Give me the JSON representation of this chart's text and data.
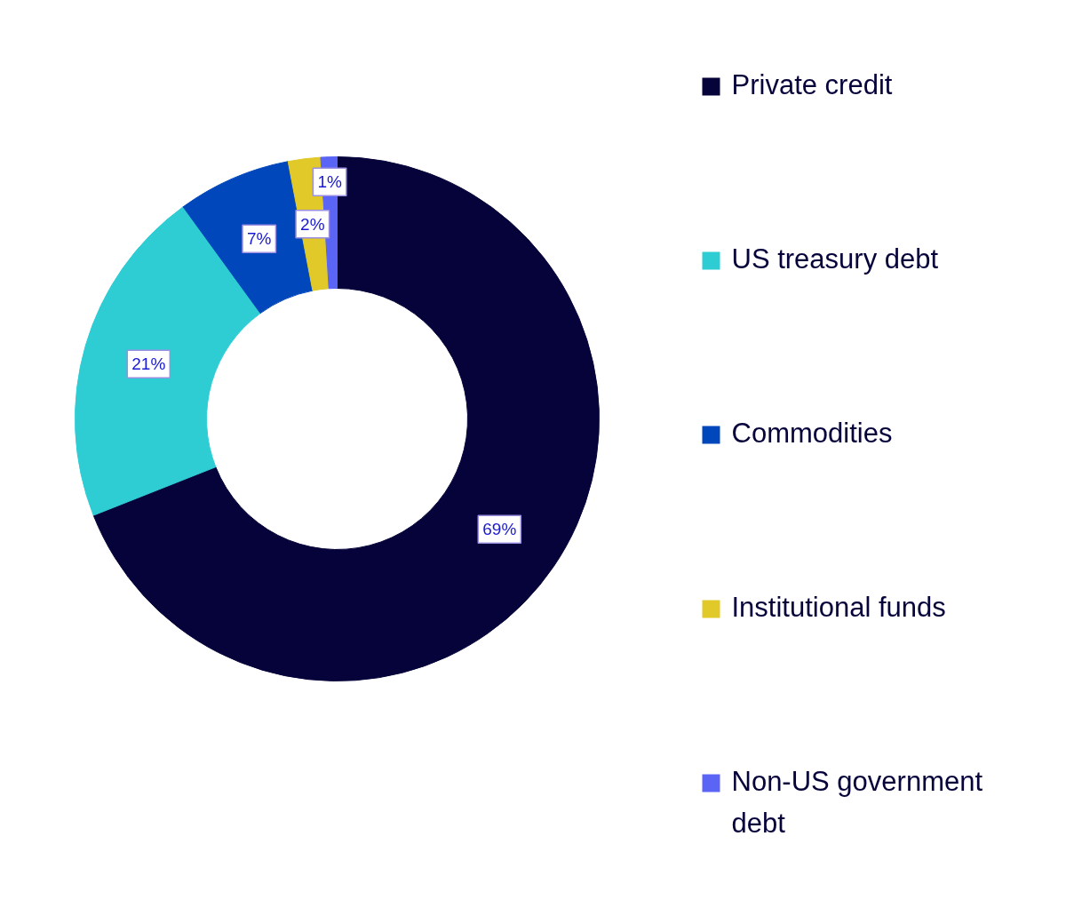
{
  "chart_data": {
    "type": "donut",
    "categories": [
      "Private credit",
      "US treasury debt",
      "Commodities",
      "Institutional funds",
      "Non-US government debt"
    ],
    "values": [
      69,
      21,
      7,
      2,
      1
    ],
    "colors": [
      "#06033a",
      "#2ecdd4",
      "#0047bb",
      "#e0c928",
      "#5a64f5"
    ],
    "value_labels": [
      "69%",
      "21%",
      "7%",
      "2%",
      "1%"
    ],
    "legend": "right"
  }
}
